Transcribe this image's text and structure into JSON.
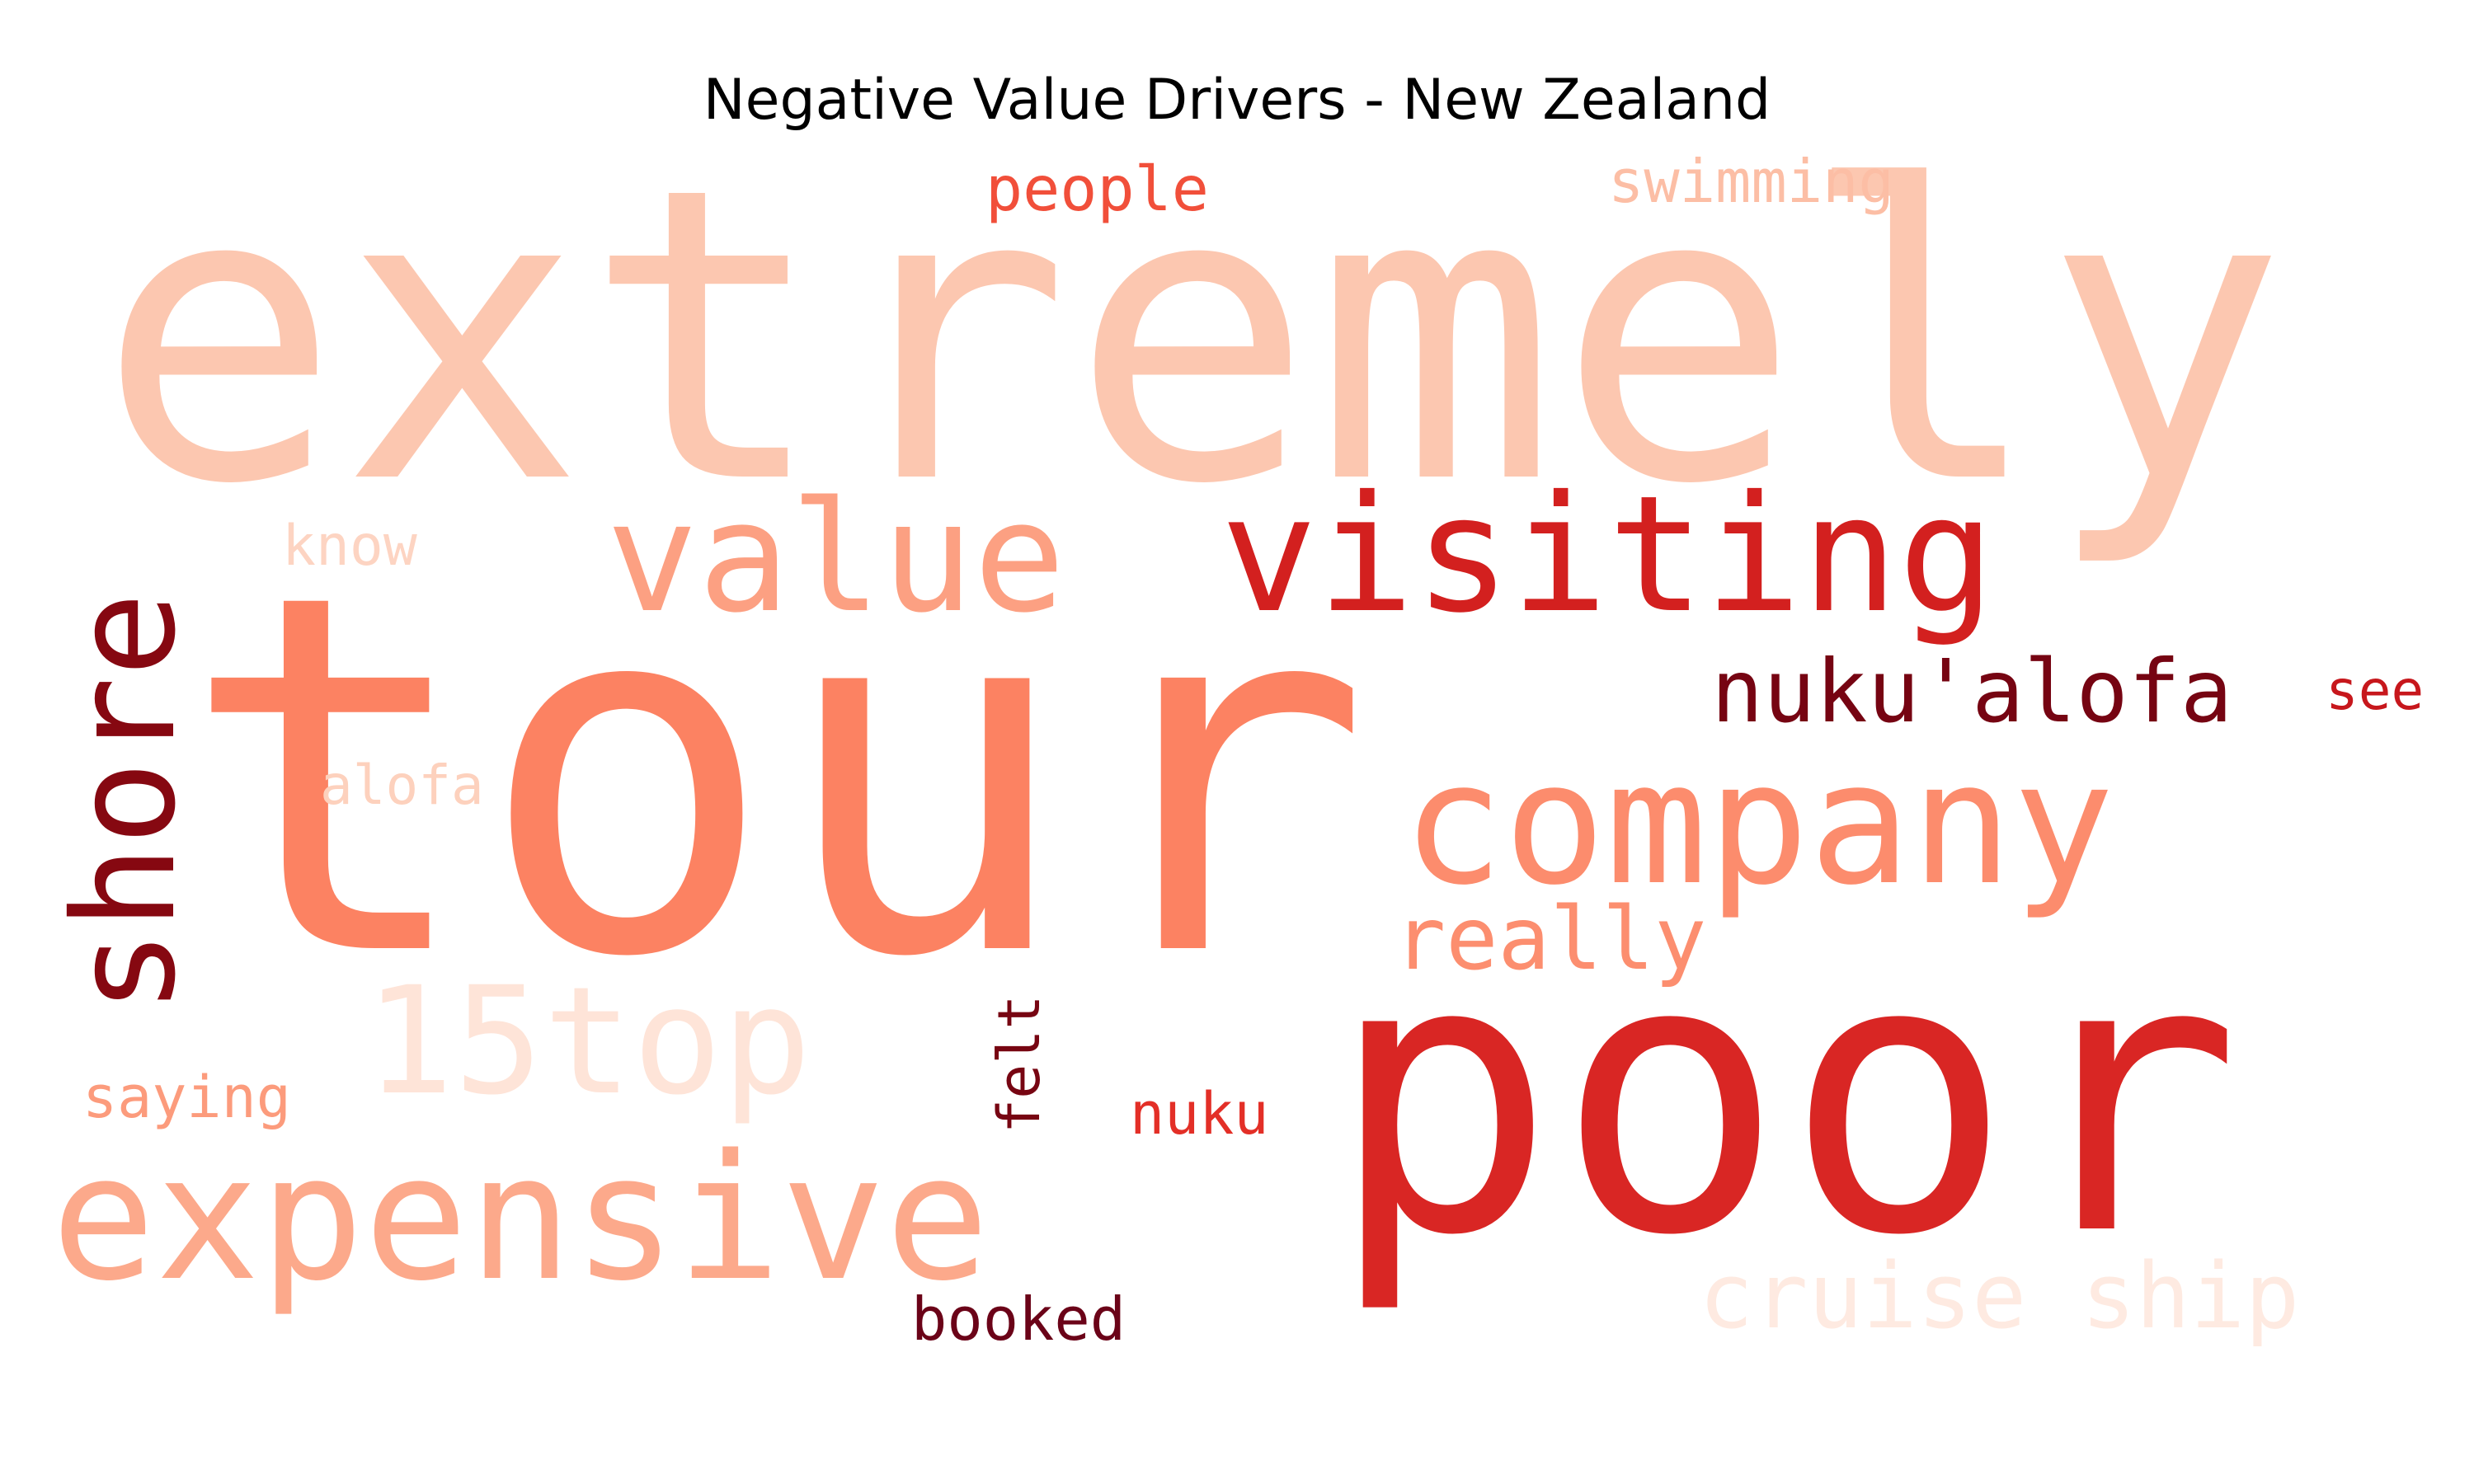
{
  "title": "Negative Value Drivers - New Zealand",
  "chart_data": {
    "type": "wordcloud",
    "title": "Negative Value Drivers - New Zealand",
    "colormap": "Reds",
    "words": [
      {
        "text": "extremely",
        "weight": 1.0,
        "color": "#fcc7b0"
      },
      {
        "text": "tour",
        "weight": 0.98,
        "color": "#fc8262"
      },
      {
        "text": "poor",
        "weight": 0.9,
        "color": "#d92624"
      },
      {
        "text": "expensive",
        "weight": 0.55,
        "color": "#fca98b"
      },
      {
        "text": "company",
        "weight": 0.55,
        "color": "#fc8c6d"
      },
      {
        "text": "visiting",
        "weight": 0.5,
        "color": "#d3201f"
      },
      {
        "text": "value",
        "weight": 0.5,
        "color": "#fca082"
      },
      {
        "text": "shore",
        "weight": 0.48,
        "color": "#860811"
      },
      {
        "text": "15top",
        "weight": 0.45,
        "color": "#fee4d8"
      },
      {
        "text": "nuku'alofa",
        "weight": 0.32,
        "color": "#760412"
      },
      {
        "text": "really",
        "weight": 0.3,
        "color": "#fc8e6f"
      },
      {
        "text": "cruise ship",
        "weight": 0.3,
        "color": "#feeae1"
      },
      {
        "text": "people",
        "weight": 0.2,
        "color": "#f14f3a"
      },
      {
        "text": "swimming",
        "weight": 0.2,
        "color": "#fcbea5"
      },
      {
        "text": "booked",
        "weight": 0.2,
        "color": "#6b0318"
      },
      {
        "text": "saying",
        "weight": 0.18,
        "color": "#fc9b7c"
      },
      {
        "text": "nuku",
        "weight": 0.18,
        "color": "#e32f27"
      },
      {
        "text": "felt",
        "weight": 0.18,
        "color": "#770512"
      },
      {
        "text": "alofa",
        "weight": 0.18,
        "color": "#fdd1bd"
      },
      {
        "text": "know",
        "weight": 0.18,
        "color": "#fdd4c2"
      },
      {
        "text": "see",
        "weight": 0.17,
        "color": "#c7171c"
      }
    ]
  }
}
